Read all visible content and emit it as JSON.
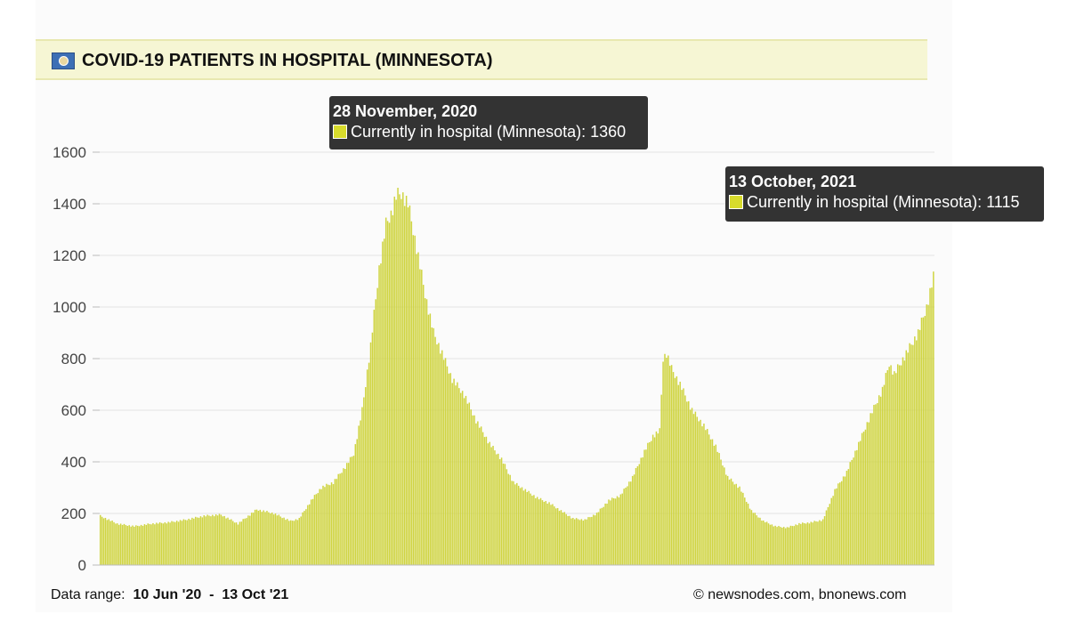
{
  "header": {
    "title": "COVID-19 PATIENTS IN HOSPITAL (MINNESOTA)",
    "flag_icon": "minnesota-flag-icon"
  },
  "tooltips": [
    {
      "date": "28 November, 2020",
      "label": "Currently in hospital (Minnesota): 1360"
    },
    {
      "date": "13 October, 2021",
      "label": "Currently in hospital (Minnesota): 1115"
    }
  ],
  "footer": {
    "range_label": "Data range:",
    "range_start": "10 Jun '20",
    "range_sep": "-",
    "range_end": "13 Oct '21",
    "credit": "© newsnodes.com, bnonews.com"
  },
  "colors": {
    "bar": "#cfd440",
    "bar_edge": "#a8ad22",
    "tooltip_bg": "#333333",
    "header_bg": "#f6f6d4",
    "grid": "#e3e3e3"
  },
  "chart_data": {
    "type": "bar",
    "title": "COVID-19 PATIENTS IN HOSPITAL (MINNESOTA)",
    "series": [
      {
        "name": "Currently in hospital (Minnesota)"
      }
    ],
    "x_range": [
      "2020-06-10",
      "2021-10-13"
    ],
    "ylim": [
      0,
      1600
    ],
    "yticks": [
      0,
      200,
      400,
      600,
      800,
      1000,
      1200,
      1400,
      1600
    ],
    "grid": true,
    "keypoints": [
      [
        "2020-06-10",
        190
      ],
      [
        "2020-06-20",
        160
      ],
      [
        "2020-06-30",
        150
      ],
      [
        "2020-07-10",
        160
      ],
      [
        "2020-07-20",
        165
      ],
      [
        "2020-07-30",
        175
      ],
      [
        "2020-08-10",
        190
      ],
      [
        "2020-08-20",
        195
      ],
      [
        "2020-08-30",
        160
      ],
      [
        "2020-09-10",
        215
      ],
      [
        "2020-09-20",
        200
      ],
      [
        "2020-09-30",
        170
      ],
      [
        "2020-10-05",
        180
      ],
      [
        "2020-10-12",
        250
      ],
      [
        "2020-10-18",
        300
      ],
      [
        "2020-10-25",
        320
      ],
      [
        "2020-11-01",
        380
      ],
      [
        "2020-11-06",
        430
      ],
      [
        "2020-11-11",
        600
      ],
      [
        "2020-11-16",
        850
      ],
      [
        "2020-11-21",
        1150
      ],
      [
        "2020-11-25",
        1320
      ],
      [
        "2020-11-28",
        1360
      ],
      [
        "2020-12-01",
        1430
      ],
      [
        "2020-12-04",
        1440
      ],
      [
        "2020-12-08",
        1400
      ],
      [
        "2020-12-13",
        1230
      ],
      [
        "2020-12-18",
        1050
      ],
      [
        "2020-12-23",
        900
      ],
      [
        "2020-12-28",
        820
      ],
      [
        "2021-01-03",
        720
      ],
      [
        "2021-01-10",
        660
      ],
      [
        "2021-01-17",
        560
      ],
      [
        "2021-01-25",
        470
      ],
      [
        "2021-02-01",
        410
      ],
      [
        "2021-02-08",
        320
      ],
      [
        "2021-02-15",
        290
      ],
      [
        "2021-02-22",
        260
      ],
      [
        "2021-03-01",
        240
      ],
      [
        "2021-03-08",
        210
      ],
      [
        "2021-03-15",
        180
      ],
      [
        "2021-03-22",
        175
      ],
      [
        "2021-03-29",
        200
      ],
      [
        "2021-04-05",
        250
      ],
      [
        "2021-04-12",
        270
      ],
      [
        "2021-04-19",
        340
      ],
      [
        "2021-04-26",
        440
      ],
      [
        "2021-05-01",
        500
      ],
      [
        "2021-05-05",
        520
      ],
      [
        "2021-05-07",
        800
      ],
      [
        "2021-05-09",
        820
      ],
      [
        "2021-05-12",
        760
      ],
      [
        "2021-05-17",
        700
      ],
      [
        "2021-05-24",
        600
      ],
      [
        "2021-05-31",
        540
      ],
      [
        "2021-06-07",
        460
      ],
      [
        "2021-06-14",
        340
      ],
      [
        "2021-06-21",
        300
      ],
      [
        "2021-06-28",
        210
      ],
      [
        "2021-07-05",
        170
      ],
      [
        "2021-07-12",
        150
      ],
      [
        "2021-07-19",
        145
      ],
      [
        "2021-07-26",
        160
      ],
      [
        "2021-08-02",
        165
      ],
      [
        "2021-08-09",
        175
      ],
      [
        "2021-08-16",
        290
      ],
      [
        "2021-08-23",
        360
      ],
      [
        "2021-08-30",
        470
      ],
      [
        "2021-09-06",
        580
      ],
      [
        "2021-09-13",
        680
      ],
      [
        "2021-09-17",
        780
      ],
      [
        "2021-09-20",
        740
      ],
      [
        "2021-09-27",
        820
      ],
      [
        "2021-10-04",
        900
      ],
      [
        "2021-10-09",
        1000
      ],
      [
        "2021-10-13",
        1115
      ]
    ]
  }
}
